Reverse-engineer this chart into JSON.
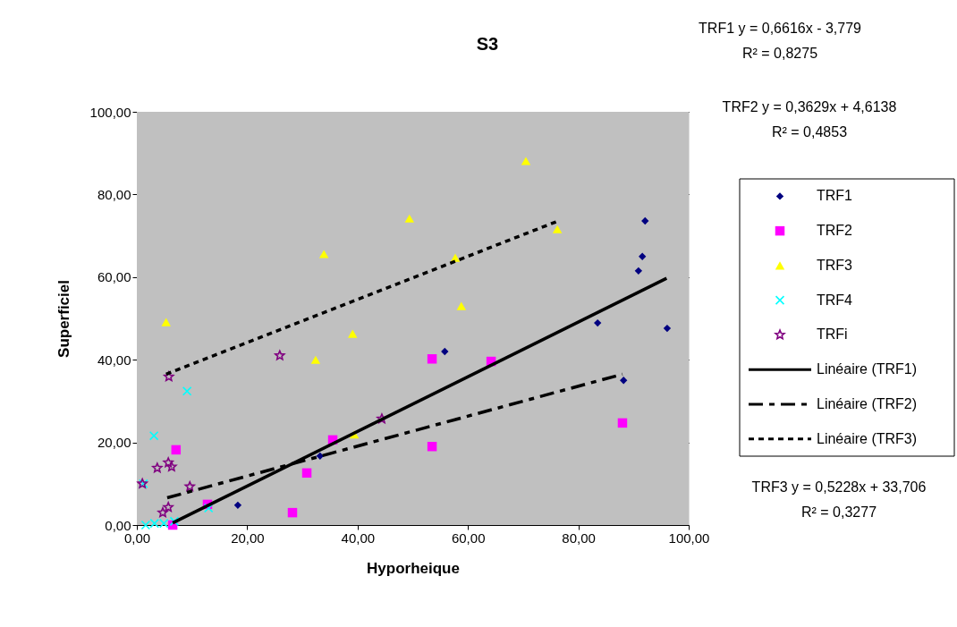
{
  "chart_data": {
    "type": "scatter",
    "title": "S3",
    "xlabel": "Hyporheique",
    "ylabel": "Superficiel",
    "xlim": [
      0,
      100
    ],
    "ylim": [
      0,
      100
    ],
    "xticks": [
      {
        "value": 0,
        "label": "0,00"
      },
      {
        "value": 20,
        "label": "20,00"
      },
      {
        "value": 40,
        "label": "40,00"
      },
      {
        "value": 60,
        "label": "60,00"
      },
      {
        "value": 80,
        "label": "80,00"
      },
      {
        "value": 100,
        "label": "100,00"
      }
    ],
    "yticks": [
      {
        "value": 0,
        "label": "0,00"
      },
      {
        "value": 20,
        "label": "20,00"
      },
      {
        "value": 40,
        "label": "40,00"
      },
      {
        "value": 60,
        "label": "60,00"
      },
      {
        "value": 80,
        "label": "80,00"
      },
      {
        "value": 100,
        "label": "100,00"
      }
    ],
    "grid": "y",
    "legend": "right",
    "series": [
      {
        "name": "TRF1",
        "type": "scatter",
        "marker": "diamond",
        "color": "#000080",
        "x": [
          18.3,
          33.2,
          55.8,
          83.5,
          88.2,
          90.9,
          91.6,
          92.1,
          96.1
        ],
        "values": [
          4.8,
          16.7,
          42,
          48.9,
          35,
          61.5,
          65,
          73.6,
          47.6
        ]
      },
      {
        "name": "TRF2",
        "type": "scatter",
        "marker": "square",
        "color": "#ff00ff",
        "x": [
          6.5,
          7.1,
          12.8,
          28.2,
          30.8,
          35.5,
          53.5,
          53.5,
          64.2,
          88
        ],
        "values": [
          0,
          18.2,
          5,
          3,
          12.6,
          20.6,
          40.2,
          19,
          39.6,
          24.7
        ]
      },
      {
        "name": "TRF3",
        "type": "scatter",
        "marker": "triangle",
        "color": "#ffff00",
        "x": [
          5.3,
          32.4,
          33.9,
          39.1,
          39.4,
          49.4,
          57.7,
          58.8,
          70.5,
          76.2
        ],
        "values": [
          49.1,
          40,
          65.6,
          46.3,
          21.9,
          74.2,
          64.7,
          53,
          88.1,
          71.6
        ]
      },
      {
        "name": "TRF4",
        "type": "scatter",
        "marker": "cross",
        "color": "#00ffff",
        "x": [
          1.2,
          1.6,
          3.2,
          4.9,
          6.8,
          3.1,
          9.1,
          13
        ],
        "values": [
          10,
          0,
          0.4,
          0.4,
          0.9,
          21.6,
          32.4,
          4.1
        ]
      },
      {
        "name": "TRFi",
        "type": "scatter",
        "marker": "star",
        "color": "#800080",
        "x": [
          1,
          3.7,
          4.7,
          5.7,
          5.7,
          5.8,
          6.3,
          9.6,
          25.9,
          44.4
        ],
        "values": [
          10,
          13.8,
          3,
          4.3,
          15.1,
          35.9,
          14.1,
          9.3,
          41,
          25.7
        ]
      },
      {
        "name": "Linéaire (TRF1)",
        "type": "line",
        "line_style": "solid",
        "color": "#000000",
        "x": [
          6.5,
          96
        ],
        "values": [
          0.5,
          59.7
        ]
      },
      {
        "name": "Linéaire (TRF2)",
        "type": "line",
        "line_style": "dashed",
        "color": "#000000",
        "x": [
          5.5,
          88
        ],
        "values": [
          6.6,
          36.5
        ]
      },
      {
        "name": "Linéaire (TRF3)",
        "type": "line",
        "line_style": "dotted",
        "color": "#000000",
        "x": [
          5.3,
          76.2
        ],
        "values": [
          36.5,
          73.5
        ]
      }
    ],
    "annotations": [
      "TRF1 y = 0,6616x - 3,779",
      "R² = 0,8275",
      "TRF2 y = 0,3629x + 4,6138",
      "R² = 0,4853",
      "TRF3 y = 0,5228x + 33,706",
      "R² = 0,3277"
    ]
  }
}
